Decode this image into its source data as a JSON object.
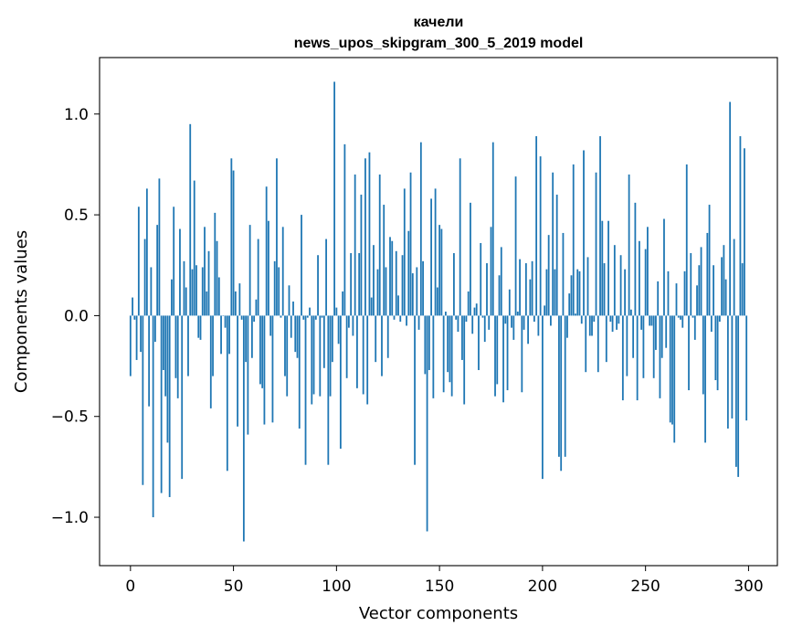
{
  "chart_data": {
    "type": "bar",
    "title": "качели",
    "subtitle": "news_upos_skipgram_300_5_2019 model",
    "xlabel": "Vector components",
    "ylabel": "Components values",
    "xlim": [
      -15,
      314
    ],
    "ylim": [
      -1.24,
      1.28
    ],
    "xticks": [
      0,
      50,
      100,
      150,
      200,
      250,
      300
    ],
    "yticks": [
      -1.0,
      -0.5,
      0.0,
      0.5,
      1.0
    ],
    "ytick_labels": [
      "−1.0",
      "−0.5",
      "0.0",
      "0.5",
      "1.0"
    ],
    "bar_color": "#1f77b4",
    "grid": false,
    "x": "0..299 (component index)",
    "values": [
      -0.3,
      0.09,
      -0.02,
      -0.22,
      0.54,
      -0.18,
      -0.84,
      0.38,
      0.63,
      -0.45,
      0.24,
      -1.0,
      -0.13,
      0.45,
      0.68,
      -0.88,
      -0.27,
      -0.4,
      -0.63,
      -0.9,
      0.18,
      0.54,
      -0.31,
      -0.41,
      0.43,
      -0.81,
      0.27,
      0.14,
      -0.3,
      0.95,
      0.23,
      0.67,
      0.25,
      -0.11,
      -0.12,
      0.24,
      0.44,
      0.12,
      0.32,
      -0.46,
      -0.3,
      0.51,
      0.37,
      0.19,
      -0.19,
      0.0,
      -0.06,
      -0.77,
      -0.19,
      0.78,
      0.72,
      0.12,
      -0.55,
      0.16,
      -0.02,
      -1.12,
      -0.23,
      -0.59,
      0.45,
      -0.21,
      -0.03,
      0.08,
      0.38,
      -0.34,
      -0.36,
      -0.54,
      0.64,
      0.47,
      -0.1,
      -0.53,
      0.27,
      0.78,
      0.24,
      -0.01,
      0.44,
      -0.3,
      -0.4,
      0.15,
      -0.11,
      0.07,
      -0.18,
      -0.21,
      -0.56,
      0.5,
      -0.02,
      -0.74,
      -0.01,
      0.04,
      -0.44,
      -0.39,
      -0.02,
      0.3,
      -0.4,
      -0.01,
      -0.26,
      0.38,
      -0.74,
      -0.4,
      -0.23,
      1.16,
      0.04,
      -0.14,
      -0.66,
      0.12,
      0.85,
      -0.31,
      -0.06,
      0.31,
      -0.1,
      0.7,
      -0.36,
      0.31,
      0.6,
      -0.39,
      0.78,
      -0.44,
      0.81,
      0.09,
      0.35,
      -0.23,
      0.23,
      0.7,
      -0.3,
      0.55,
      0.24,
      -0.21,
      0.39,
      0.37,
      -0.02,
      0.32,
      0.1,
      -0.03,
      0.3,
      0.63,
      -0.05,
      0.42,
      0.71,
      0.21,
      -0.74,
      0.24,
      -0.07,
      0.86,
      0.27,
      -0.29,
      -1.07,
      -0.27,
      0.58,
      -0.41,
      0.63,
      0.14,
      0.45,
      0.43,
      -0.38,
      0.02,
      -0.28,
      -0.33,
      -0.4,
      0.31,
      -0.02,
      -0.08,
      0.78,
      -0.22,
      -0.44,
      -0.03,
      0.12,
      0.56,
      -0.09,
      0.04,
      0.06,
      -0.27,
      0.36,
      -0.01,
      -0.13,
      0.26,
      -0.07,
      0.44,
      0.86,
      -0.4,
      -0.34,
      0.2,
      0.34,
      -0.43,
      -0.04,
      -0.37,
      0.13,
      -0.06,
      -0.12,
      0.69,
      0.02,
      0.28,
      -0.38,
      -0.07,
      0.26,
      -0.14,
      0.18,
      0.27,
      -0.03,
      0.89,
      -0.1,
      0.79,
      -0.81,
      0.05,
      0.23,
      0.4,
      -0.05,
      0.71,
      0.23,
      0.6,
      -0.7,
      -0.77,
      0.41,
      -0.7,
      -0.11,
      0.11,
      0.2,
      0.75,
      0.01,
      0.23,
      0.22,
      -0.04,
      0.82,
      -0.28,
      0.29,
      -0.1,
      -0.1,
      -0.03,
      0.71,
      -0.28,
      0.89,
      0.47,
      0.26,
      -0.23,
      0.47,
      -0.03,
      -0.08,
      0.35,
      -0.07,
      -0.04,
      0.3,
      -0.42,
      0.23,
      -0.3,
      0.7,
      0.03,
      -0.21,
      0.56,
      -0.42,
      0.37,
      -0.07,
      -0.31,
      0.33,
      0.44,
      -0.05,
      -0.05,
      -0.31,
      -0.17,
      0.17,
      -0.41,
      -0.21,
      0.48,
      -0.16,
      0.22,
      -0.53,
      -0.54,
      -0.63,
      0.16,
      -0.01,
      -0.02,
      -0.06,
      0.22,
      0.75,
      -0.37,
      0.31,
      -0.01,
      -0.12,
      0.15,
      0.25,
      0.34,
      -0.39,
      -0.63,
      0.41,
      0.55,
      -0.08,
      0.25,
      -0.32,
      -0.37,
      -0.03,
      0.29,
      0.35,
      0.18,
      -0.56,
      1.06,
      -0.51,
      0.38,
      -0.75,
      -0.8,
      0.89,
      0.26,
      0.83,
      -0.52
    ]
  }
}
